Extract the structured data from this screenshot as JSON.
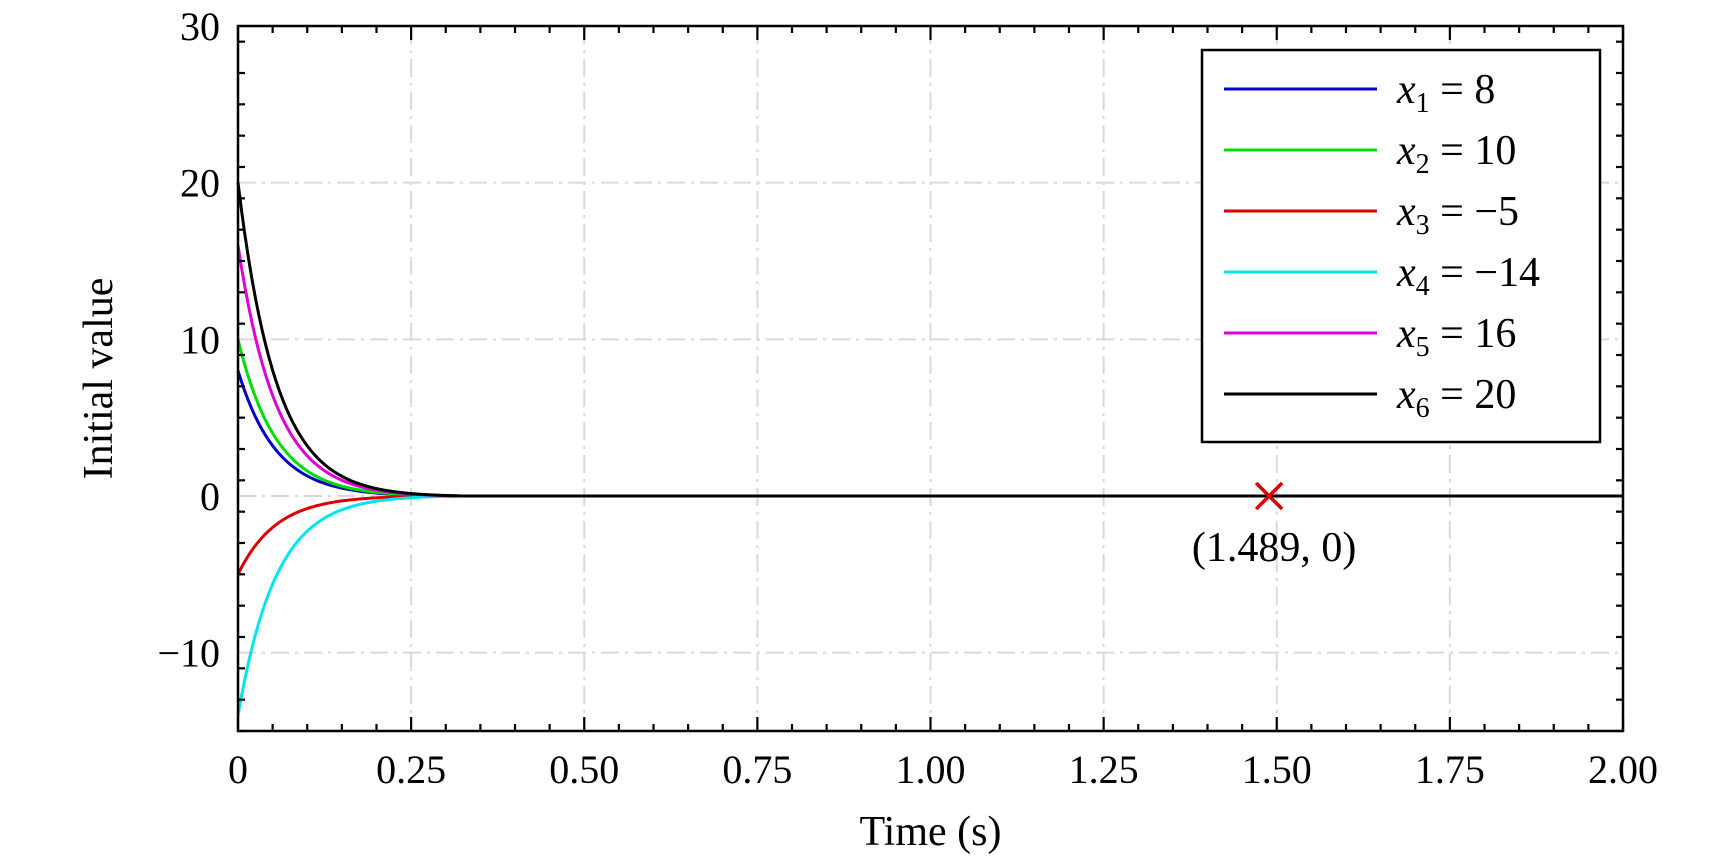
{
  "chart_data": {
    "type": "line",
    "xlabel": "Time (s)",
    "ylabel": "Initial value",
    "xlim": [
      0,
      2.0
    ],
    "ylim": [
      -15,
      30
    ],
    "xticks": [
      0,
      0.25,
      0.5,
      0.75,
      1.0,
      1.25,
      1.5,
      1.75,
      2.0
    ],
    "xtick_labels": [
      "0",
      "0.25",
      "0.50",
      "0.75",
      "1.00",
      "1.25",
      "1.50",
      "1.75",
      "2.00"
    ],
    "yticks": [
      -10,
      0,
      10,
      20,
      30
    ],
    "ytick_labels": [
      "−10",
      "0",
      "10",
      "20",
      "30"
    ],
    "grid": true,
    "legend_position": "top-right",
    "convergence_time": 0.325,
    "series": [
      {
        "var": "x",
        "sub": "1",
        "rel": " = 8",
        "initial": 8,
        "color": "#0000cc"
      },
      {
        "var": "x",
        "sub": "2",
        "rel": " = 10",
        "initial": 10,
        "color": "#00dd00"
      },
      {
        "var": "x",
        "sub": "3",
        "rel": " = −5",
        "initial": -5,
        "color": "#dd0000"
      },
      {
        "var": "x",
        "sub": "4",
        "rel": " = −14",
        "initial": -14,
        "color": "#00e5ee"
      },
      {
        "var": "x",
        "sub": "5",
        "rel": " = 16",
        "initial": 16,
        "color": "#dd00dd"
      },
      {
        "var": "x",
        "sub": "6",
        "rel": " = 20",
        "initial": 20,
        "color": "#000000"
      }
    ],
    "annotation": {
      "x": 1.489,
      "y": 0,
      "label": "(1.489, 0)",
      "marker": "x",
      "color": "#dd0000"
    }
  }
}
